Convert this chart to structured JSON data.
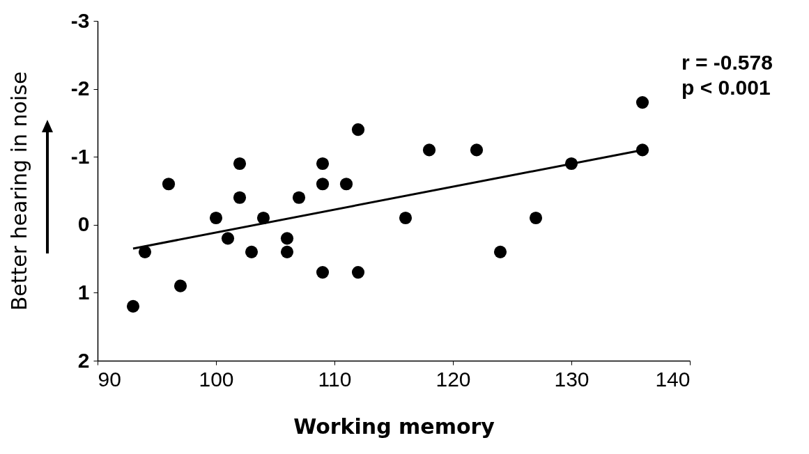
{
  "chart_data": {
    "type": "scatter",
    "xlabel": "Working memory",
    "ylabel": "Better hearing in noise",
    "annotations": [
      "r = -0.578",
      "p < 0.001"
    ],
    "xlim": [
      90,
      140
    ],
    "xticks": [
      90,
      100,
      110,
      120,
      130,
      140
    ],
    "ylim": [
      2,
      -3
    ],
    "yticks": [
      2,
      1,
      0,
      -1,
      -2,
      -3
    ],
    "grid": false,
    "series": [
      {
        "marker": "circle",
        "color": "#000000",
        "x": [
          93,
          94,
          96,
          97,
          100,
          101,
          102,
          102,
          103,
          104,
          106,
          106,
          107,
          109,
          109,
          109,
          111,
          112,
          112,
          116,
          118,
          122,
          124,
          127,
          130,
          136,
          136
        ],
        "values": [
          1.2,
          0.4,
          -0.6,
          0.9,
          -0.1,
          0.2,
          -0.9,
          -0.4,
          0.4,
          -0.1,
          0.2,
          0.4,
          -0.4,
          -0.9,
          -0.6,
          0.7,
          -0.6,
          -1.4,
          0.7,
          -0.1,
          -1.1,
          -1.1,
          0.4,
          -0.1,
          -0.9,
          -1.8,
          -1.1
        ]
      },
      {
        "type": "line",
        "color": "#000000",
        "x": [
          93,
          136
        ],
        "values": [
          0.35,
          -1.1
        ]
      }
    ]
  }
}
